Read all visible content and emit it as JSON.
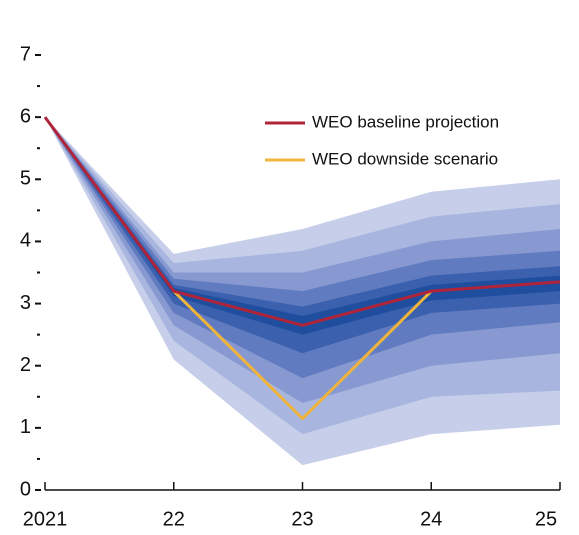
{
  "chart_data": {
    "type": "fan",
    "categories": [
      "2021",
      "22",
      "23",
      "24",
      "25"
    ],
    "ylim": [
      0,
      7
    ],
    "yticks": [
      0,
      1,
      2,
      3,
      4,
      5,
      6,
      7
    ],
    "yminorticks": [
      0.5,
      1.5,
      2.5,
      3.5,
      4.5,
      5.5,
      6.5
    ],
    "legend": "upper right",
    "fan": [
      {
        "color": "#c6cee9",
        "lower": [
          6,
          2.1,
          0.4,
          0.9,
          1.05
        ],
        "upper": [
          6,
          3.8,
          4.2,
          4.8,
          5.0
        ]
      },
      {
        "color": "#a7b5df",
        "lower": [
          6,
          2.4,
          0.9,
          1.5,
          1.6
        ],
        "upper": [
          6,
          3.65,
          3.85,
          4.4,
          4.6
        ]
      },
      {
        "color": "#8799d0",
        "lower": [
          6,
          2.65,
          1.4,
          2.0,
          2.2
        ],
        "upper": [
          6,
          3.5,
          3.5,
          4.0,
          4.2
        ]
      },
      {
        "color": "#607bc0",
        "lower": [
          6,
          2.85,
          1.8,
          2.5,
          2.7
        ],
        "upper": [
          6,
          3.4,
          3.2,
          3.7,
          3.85
        ]
      },
      {
        "color": "#3b60ae",
        "lower": [
          6,
          3.0,
          2.2,
          2.85,
          3.0
        ],
        "upper": [
          6,
          3.3,
          2.95,
          3.45,
          3.6
        ]
      },
      {
        "color": "#1f4e9e",
        "lower": [
          6,
          3.12,
          2.5,
          3.05,
          3.2
        ],
        "upper": [
          6,
          3.25,
          2.8,
          3.3,
          3.45
        ]
      }
    ],
    "series": [
      {
        "name": "WEO downside scenario",
        "color": "#f0b43c",
        "values": [
          null,
          3.2,
          1.15,
          3.2,
          null
        ]
      },
      {
        "name": "WEO baseline projection",
        "color": "#b0243a",
        "values": [
          6,
          3.2,
          2.65,
          3.2,
          3.35
        ]
      }
    ]
  }
}
